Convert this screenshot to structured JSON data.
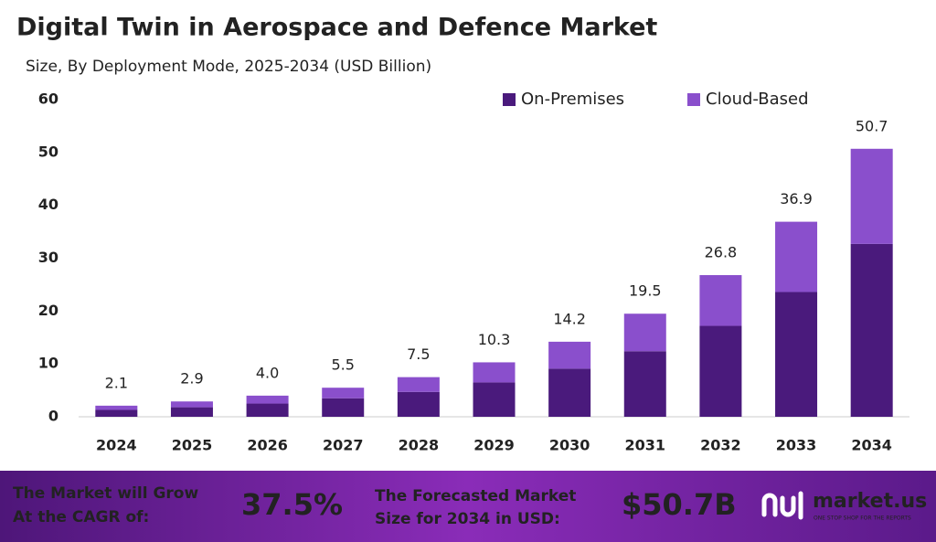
{
  "chart_data": {
    "type": "stacked_bar",
    "title": "Digital Twin in Aerospace and Defence Market",
    "subtitle": "Size, By Deployment Mode, 2025-2034 (USD Billion)",
    "categories": [
      "2024",
      "2025",
      "2026",
      "2027",
      "2028",
      "2029",
      "2030",
      "2031",
      "2032",
      "2033",
      "2034"
    ],
    "series": [
      {
        "name": "On-Premises",
        "color": "#4a1a7c",
        "values": [
          1.3,
          1.8,
          2.5,
          3.5,
          4.7,
          6.5,
          9.1,
          12.4,
          17.2,
          23.6,
          32.7
        ]
      },
      {
        "name": "Cloud-Based",
        "color": "#8a4fcc",
        "values": [
          0.8,
          1.1,
          1.5,
          2.0,
          2.8,
          3.8,
          5.1,
          7.1,
          9.6,
          13.3,
          18.0
        ]
      }
    ],
    "totals": [
      2.1,
      2.9,
      4.0,
      5.5,
      7.5,
      10.3,
      14.2,
      19.5,
      26.8,
      36.9,
      50.7
    ],
    "total_labels": [
      "2.1",
      "2.9",
      "4.0",
      "5.5",
      "7.5",
      "10.3",
      "14.2",
      "19.5",
      "26.8",
      "36.9",
      "50.7"
    ],
    "ylim": [
      0,
      60
    ],
    "yticks": [
      0,
      10,
      20,
      30,
      40,
      50,
      60
    ],
    "grid": false,
    "legend": "top-right"
  },
  "footer": {
    "cagr_text_1": "The Market will Grow",
    "cagr_text_2": "At the CAGR of:",
    "cagr": "37.5%",
    "forecast_text_1": "The Forecasted Market",
    "forecast_text_2": "Size for 2034 in USD:",
    "forecast": "$50.7B",
    "brand": "market.us",
    "tagline": "ONE STOP SHOP FOR THE REPORTS"
  }
}
